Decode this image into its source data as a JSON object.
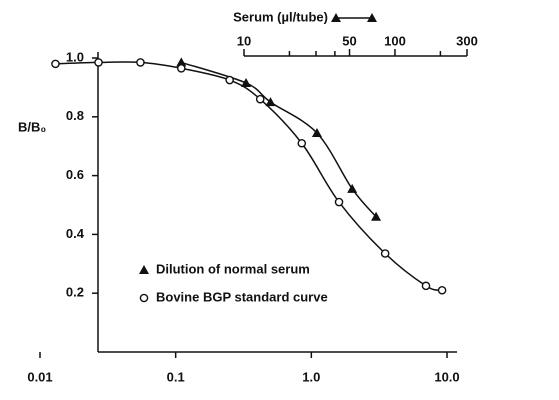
{
  "chart_data": {
    "type": "line",
    "log_x": true,
    "xlim": [
      0.01,
      10
    ],
    "xticks": [
      0.01,
      0.1,
      {
        "value": 1,
        "label": "1.0"
      },
      {
        "value": 10,
        "label": "10.0"
      }
    ],
    "ylim": [
      0,
      1
    ],
    "yticks": [
      {
        "value": 0.2,
        "label": "0.2"
      },
      {
        "value": 0.4,
        "label": "0.4"
      },
      {
        "value": 0.6,
        "label": "0.6"
      },
      {
        "value": 0.8,
        "label": "0.8"
      },
      {
        "value": 1,
        "label": "1.0"
      }
    ],
    "ylabel": "B/B₀",
    "x2label": "Serum (µl/tube)",
    "x2lim": [
      10,
      300
    ],
    "x2ticks": [
      10,
      50,
      100,
      300
    ],
    "x2minor_ticks": [
      20,
      30,
      40,
      200
    ],
    "series": [
      {
        "name": "Dilution of normal serum",
        "marker": "triangle",
        "color": "#111111",
        "x": [
          0.11,
          0.33,
          0.5,
          1.1,
          2.0,
          3.0
        ],
        "values": [
          0.985,
          0.915,
          0.85,
          0.745,
          0.555,
          0.46
        ]
      },
      {
        "name": "Bovine BGP standard curve",
        "marker": "circle",
        "color": "#111111",
        "x": [
          0.013,
          0.027,
          0.055,
          0.11,
          0.25,
          0.42,
          0.85,
          1.6,
          3.5,
          7,
          9.2
        ],
        "values": [
          0.98,
          0.985,
          0.985,
          0.965,
          0.925,
          0.86,
          0.71,
          0.51,
          0.335,
          0.225,
          0.21
        ]
      }
    ]
  }
}
